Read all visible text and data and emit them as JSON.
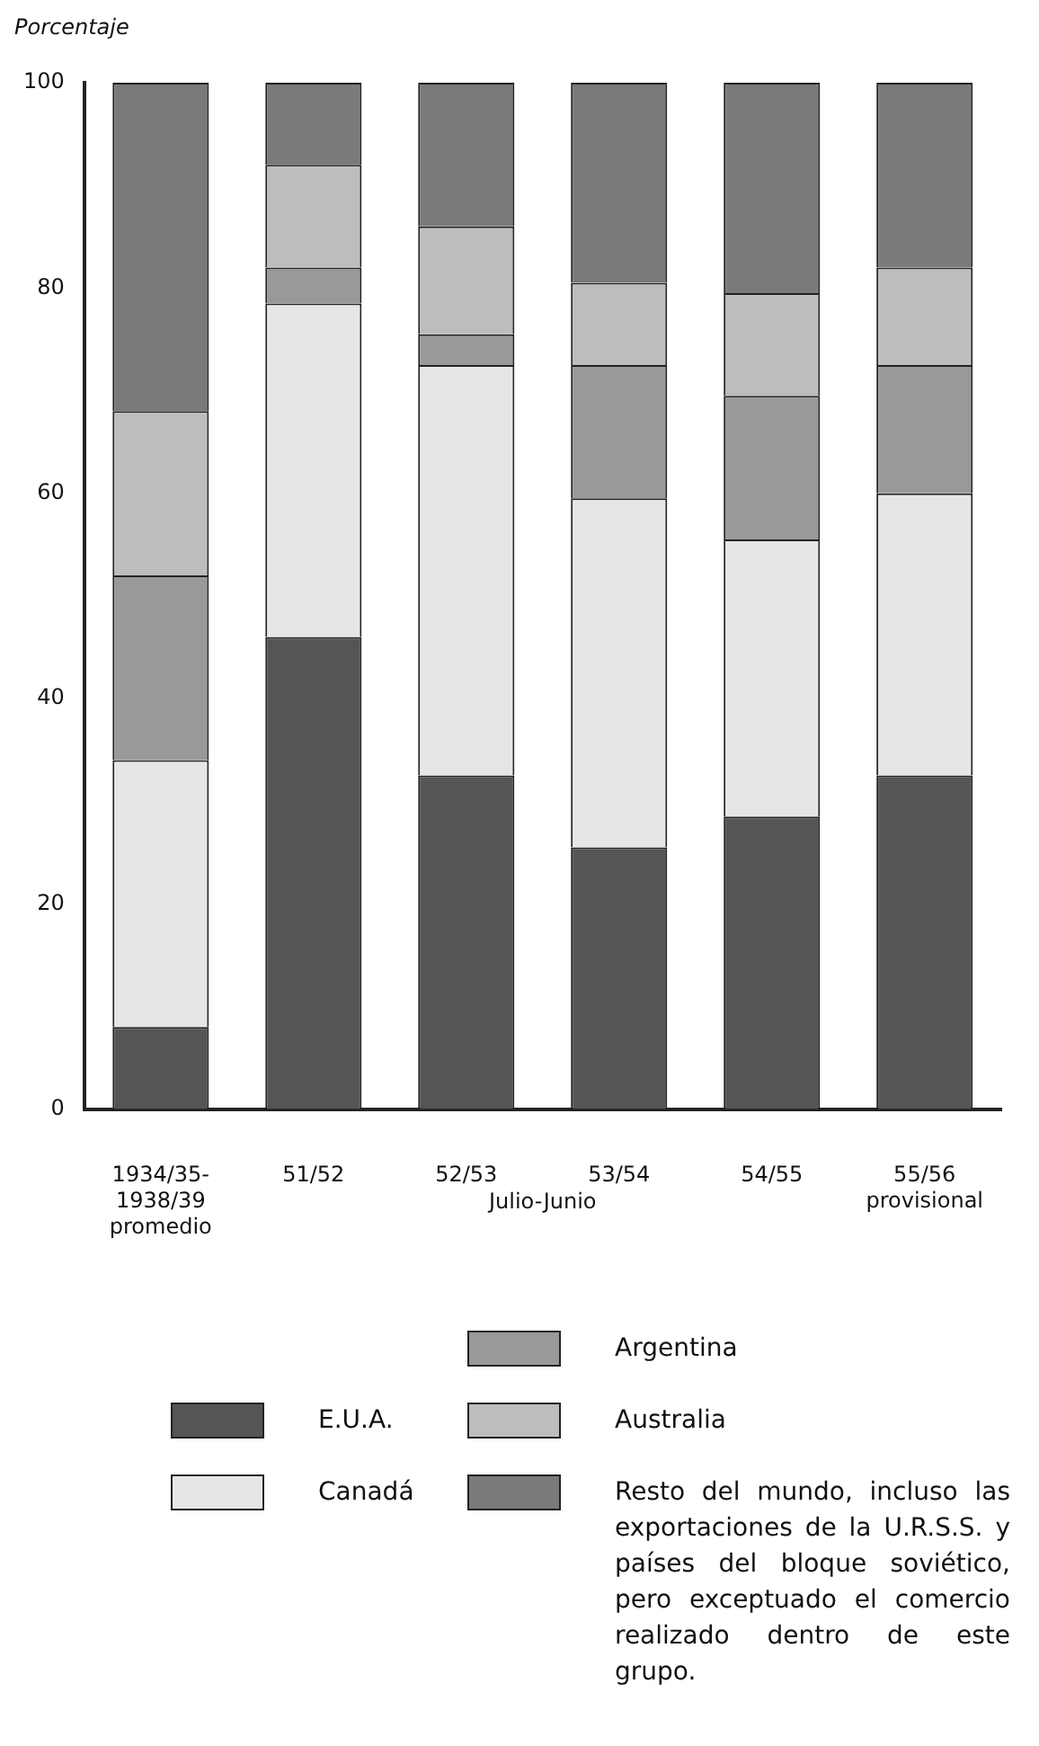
{
  "chart_data": {
    "type": "bar",
    "stacked": true,
    "ylabel": "Porcentaje",
    "categories": [
      "1934/35-\n1938/39\npromedio",
      "51/52",
      "52/53",
      "53/54",
      "54/55",
      "55/56\nprovisional"
    ],
    "series": [
      {
        "name": "E.U.A.",
        "color": "#555555",
        "values": [
          8,
          46,
          32.5,
          25.5,
          28.5,
          32.5
        ]
      },
      {
        "name": "Canadá",
        "color": "#e6e6e6",
        "values": [
          26,
          32.5,
          40,
          34,
          27,
          27.5
        ]
      },
      {
        "name": "Argentina",
        "color": "#999999",
        "values": [
          18,
          3.5,
          3,
          13,
          14,
          12.5
        ]
      },
      {
        "name": "Australia",
        "color": "#bdbdbd",
        "values": [
          16,
          10,
          10.5,
          8,
          10,
          9.5
        ]
      },
      {
        "name": "Resto del mundo, incluso las exportaciones de la U.R.S.S. y países del bloque soviético, pero exceptuado el comercio realizado dentro de este grupo.",
        "color": "#7a7a7a",
        "values": [
          32,
          8,
          14,
          19.5,
          20.5,
          18
        ]
      }
    ],
    "ylim": [
      0,
      100
    ],
    "yticks": [
      0,
      20,
      40,
      60,
      80,
      100
    ],
    "grid": false,
    "legend": "bottom",
    "annotations": [
      "Julio-Junio"
    ]
  }
}
